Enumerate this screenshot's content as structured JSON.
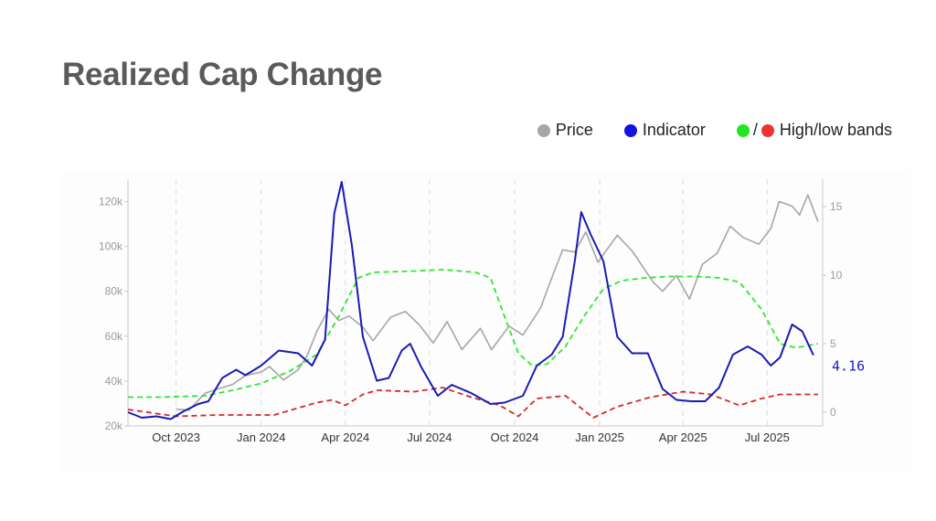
{
  "title": "Realized Cap Change",
  "legend": {
    "price_label": "Price",
    "indicator_label": "Indicator",
    "bands_label": "High/low bands",
    "bands_separator": "/"
  },
  "colors": {
    "price": "#a6a6a6",
    "indicator": "#1a1ab4",
    "high_band": "#2ee82e",
    "low_band": "#d42a2a",
    "title": "#5a5a5a"
  },
  "chart_data": {
    "type": "line",
    "x_axis": {
      "type": "date",
      "range": [
        "2023-08-10",
        "2025-08-30"
      ],
      "tick_labels": [
        "Oct 2023",
        "Jan 2024",
        "Apr 2024",
        "Jul 2024",
        "Oct 2024",
        "Jan 2025",
        "Apr 2025",
        "Jul 2025"
      ],
      "tick_dates": [
        "2023-10-01",
        "2024-01-01",
        "2024-04-01",
        "2024-07-01",
        "2024-10-01",
        "2025-01-01",
        "2025-04-01",
        "2025-07-01"
      ],
      "vertical_grid": "dashed"
    },
    "y_left": {
      "range": [
        20000,
        130000
      ],
      "tick_values": [
        20000,
        40000,
        60000,
        80000,
        100000,
        120000
      ],
      "tick_labels": [
        "20k",
        "40k",
        "60k",
        "80k",
        "100k",
        "120k"
      ]
    },
    "y_right": {
      "range": [
        -1,
        17
      ],
      "tick_values": [
        0,
        5,
        10,
        15
      ],
      "tick_labels": [
        "0",
        "5",
        "10",
        "15"
      ]
    },
    "last_value_label": "4.16",
    "series": [
      {
        "name": "Price",
        "axis": "left",
        "style": "solid",
        "points": [
          [
            "2023-10-01",
            27500
          ],
          [
            "2023-10-15",
            27000
          ],
          [
            "2023-11-01",
            34500
          ],
          [
            "2023-11-15",
            36500
          ],
          [
            "2023-12-01",
            38500
          ],
          [
            "2023-12-15",
            42500
          ],
          [
            "2024-01-01",
            44000
          ],
          [
            "2024-01-10",
            46500
          ],
          [
            "2024-01-25",
            40500
          ],
          [
            "2024-02-10",
            45000
          ],
          [
            "2024-02-20",
            51500
          ],
          [
            "2024-03-01",
            62000
          ],
          [
            "2024-03-14",
            72000
          ],
          [
            "2024-03-25",
            67000
          ],
          [
            "2024-04-05",
            69000
          ],
          [
            "2024-04-20",
            64000
          ],
          [
            "2024-05-01",
            58000
          ],
          [
            "2024-05-20",
            68500
          ],
          [
            "2024-06-05",
            71000
          ],
          [
            "2024-06-20",
            65000
          ],
          [
            "2024-07-05",
            57000
          ],
          [
            "2024-07-20",
            66500
          ],
          [
            "2024-08-05",
            54000
          ],
          [
            "2024-08-25",
            63500
          ],
          [
            "2024-09-06",
            54000
          ],
          [
            "2024-09-25",
            64500
          ],
          [
            "2024-10-10",
            60500
          ],
          [
            "2024-10-29",
            72500
          ],
          [
            "2024-11-12",
            88000
          ],
          [
            "2024-11-22",
            98500
          ],
          [
            "2024-12-05",
            97500
          ],
          [
            "2024-12-17",
            106500
          ],
          [
            "2024-12-30",
            93000
          ],
          [
            "2025-01-20",
            105000
          ],
          [
            "2025-02-05",
            98000
          ],
          [
            "2025-02-28",
            84000
          ],
          [
            "2025-03-10",
            80000
          ],
          [
            "2025-03-25",
            87000
          ],
          [
            "2025-04-08",
            76500
          ],
          [
            "2025-04-22",
            92000
          ],
          [
            "2025-05-08",
            97000
          ],
          [
            "2025-05-22",
            109000
          ],
          [
            "2025-06-05",
            104000
          ],
          [
            "2025-06-22",
            101000
          ],
          [
            "2025-07-05",
            108000
          ],
          [
            "2025-07-14",
            120000
          ],
          [
            "2025-07-28",
            118000
          ],
          [
            "2025-08-05",
            114000
          ],
          [
            "2025-08-14",
            123000
          ],
          [
            "2025-08-25",
            111000
          ]
        ]
      },
      {
        "name": "Indicator",
        "axis": "right",
        "style": "solid",
        "points": [
          [
            "2023-08-10",
            0.0
          ],
          [
            "2023-08-25",
            -0.4
          ],
          [
            "2023-09-10",
            -0.3
          ],
          [
            "2023-09-25",
            -0.5
          ],
          [
            "2023-10-10",
            0.1
          ],
          [
            "2023-10-25",
            0.6
          ],
          [
            "2023-11-05",
            0.8
          ],
          [
            "2023-11-20",
            2.5
          ],
          [
            "2023-12-05",
            3.1
          ],
          [
            "2023-12-15",
            2.7
          ],
          [
            "2024-01-01",
            3.4
          ],
          [
            "2024-01-20",
            4.5
          ],
          [
            "2024-02-10",
            4.3
          ],
          [
            "2024-02-25",
            3.4
          ],
          [
            "2024-03-10",
            5.3
          ],
          [
            "2024-03-20",
            14.5
          ],
          [
            "2024-03-28",
            16.8
          ],
          [
            "2024-04-08",
            12.2
          ],
          [
            "2024-04-20",
            5.5
          ],
          [
            "2024-05-05",
            2.3
          ],
          [
            "2024-05-18",
            2.5
          ],
          [
            "2024-06-01",
            4.5
          ],
          [
            "2024-06-10",
            5.0
          ],
          [
            "2024-06-22",
            3.3
          ],
          [
            "2024-07-10",
            1.2
          ],
          [
            "2024-07-25",
            2.0
          ],
          [
            "2024-08-15",
            1.4
          ],
          [
            "2024-09-05",
            0.6
          ],
          [
            "2024-09-20",
            0.7
          ],
          [
            "2024-10-10",
            1.2
          ],
          [
            "2024-10-25",
            3.4
          ],
          [
            "2024-11-10",
            4.2
          ],
          [
            "2024-11-22",
            5.5
          ],
          [
            "2024-12-05",
            11.0
          ],
          [
            "2024-12-12",
            14.6
          ],
          [
            "2024-12-22",
            13.0
          ],
          [
            "2025-01-05",
            11.0
          ],
          [
            "2025-01-20",
            5.5
          ],
          [
            "2025-02-05",
            4.3
          ],
          [
            "2025-02-22",
            4.3
          ],
          [
            "2025-03-10",
            1.7
          ],
          [
            "2025-03-25",
            0.9
          ],
          [
            "2025-04-10",
            0.8
          ],
          [
            "2025-04-25",
            0.8
          ],
          [
            "2025-05-10",
            1.8
          ],
          [
            "2025-05-25",
            4.2
          ],
          [
            "2025-06-10",
            4.8
          ],
          [
            "2025-06-25",
            4.2
          ],
          [
            "2025-07-05",
            3.4
          ],
          [
            "2025-07-15",
            4.0
          ],
          [
            "2025-07-28",
            6.4
          ],
          [
            "2025-08-08",
            5.9
          ],
          [
            "2025-08-20",
            4.16
          ]
        ]
      },
      {
        "name": "High band",
        "axis": "right",
        "style": "dashed",
        "points": [
          [
            "2023-08-10",
            1.1
          ],
          [
            "2023-09-15",
            1.1
          ],
          [
            "2023-11-01",
            1.2
          ],
          [
            "2023-12-01",
            1.6
          ],
          [
            "2024-01-01",
            2.1
          ],
          [
            "2024-02-01",
            3.0
          ],
          [
            "2024-03-01",
            4.2
          ],
          [
            "2024-03-25",
            7.0
          ],
          [
            "2024-04-15",
            9.8
          ],
          [
            "2024-05-01",
            10.2
          ],
          [
            "2024-06-15",
            10.3
          ],
          [
            "2024-07-15",
            10.4
          ],
          [
            "2024-08-20",
            10.2
          ],
          [
            "2024-09-05",
            9.8
          ],
          [
            "2024-09-20",
            7.0
          ],
          [
            "2024-10-05",
            4.3
          ],
          [
            "2024-10-20",
            3.4
          ],
          [
            "2024-11-05",
            3.5
          ],
          [
            "2024-11-25",
            4.8
          ],
          [
            "2024-12-15",
            7.0
          ],
          [
            "2025-01-05",
            9.0
          ],
          [
            "2025-01-25",
            9.6
          ],
          [
            "2025-02-20",
            9.8
          ],
          [
            "2025-03-15",
            9.9
          ],
          [
            "2025-04-15",
            9.9
          ],
          [
            "2025-05-10",
            9.8
          ],
          [
            "2025-06-01",
            9.5
          ],
          [
            "2025-06-25",
            7.5
          ],
          [
            "2025-07-15",
            5.0
          ],
          [
            "2025-08-01",
            4.7
          ],
          [
            "2025-08-25",
            5.0
          ]
        ]
      },
      {
        "name": "Low band",
        "axis": "right",
        "style": "dashed",
        "points": [
          [
            "2023-08-10",
            0.2
          ],
          [
            "2023-10-01",
            -0.3
          ],
          [
            "2023-11-15",
            -0.2
          ],
          [
            "2024-01-15",
            -0.2
          ],
          [
            "2024-03-01",
            0.7
          ],
          [
            "2024-03-18",
            0.9
          ],
          [
            "2024-04-01",
            0.5
          ],
          [
            "2024-04-20",
            1.3
          ],
          [
            "2024-05-05",
            1.6
          ],
          [
            "2024-06-15",
            1.5
          ],
          [
            "2024-07-15",
            1.8
          ],
          [
            "2024-08-15",
            1.1
          ],
          [
            "2024-09-15",
            0.5
          ],
          [
            "2024-10-05",
            -0.3
          ],
          [
            "2024-10-25",
            1.0
          ],
          [
            "2024-11-25",
            1.2
          ],
          [
            "2024-12-25",
            -0.4
          ],
          [
            "2025-01-20",
            0.4
          ],
          [
            "2025-02-25",
            1.1
          ],
          [
            "2025-04-01",
            1.5
          ],
          [
            "2025-05-01",
            1.3
          ],
          [
            "2025-06-01",
            0.5
          ],
          [
            "2025-06-25",
            1.0
          ],
          [
            "2025-07-15",
            1.3
          ],
          [
            "2025-08-25",
            1.3
          ]
        ]
      }
    ]
  }
}
